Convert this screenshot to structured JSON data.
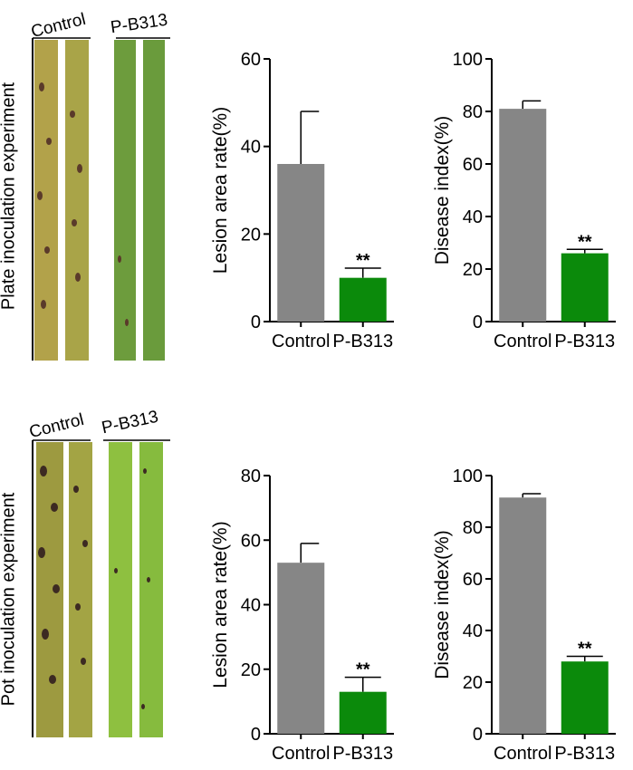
{
  "rows": [
    {
      "label": "Plate inoculation experiment",
      "photo": {
        "left_label": "Control",
        "right_label": "P-B313"
      },
      "charts": [
        {
          "type": "bar",
          "title": "",
          "xlabel": "",
          "ylabel": "Lesion area rate(%)",
          "categories": [
            "Control",
            "P-B313"
          ],
          "values": [
            36,
            10
          ],
          "errors": [
            12,
            2.2
          ],
          "significance": [
            "",
            "**"
          ],
          "ylim": [
            0,
            60
          ],
          "yticks": [
            0,
            20,
            40,
            60
          ],
          "colors": [
            "#868686",
            "#0b8a0b"
          ]
        },
        {
          "type": "bar",
          "title": "",
          "xlabel": "",
          "ylabel": "Disease index(%)",
          "categories": [
            "Control",
            "P-B313"
          ],
          "values": [
            81,
            26
          ],
          "errors": [
            3,
            1.5
          ],
          "significance": [
            "",
            "**"
          ],
          "ylim": [
            0,
            100
          ],
          "yticks": [
            0,
            20,
            40,
            60,
            80,
            100
          ],
          "colors": [
            "#868686",
            "#0b8a0b"
          ]
        }
      ]
    },
    {
      "label": "Pot inoculation experiment",
      "photo": {
        "left_label": "Control",
        "right_label": "P-B313"
      },
      "charts": [
        {
          "type": "bar",
          "title": "",
          "xlabel": "",
          "ylabel": "Lesion area rate(%)",
          "categories": [
            "Control",
            "P-B313"
          ],
          "values": [
            53,
            13
          ],
          "errors": [
            6,
            4.5
          ],
          "significance": [
            "",
            "**"
          ],
          "ylim": [
            0,
            80
          ],
          "yticks": [
            0,
            20,
            40,
            60,
            80
          ],
          "colors": [
            "#868686",
            "#0b8a0b"
          ]
        },
        {
          "type": "bar",
          "title": "",
          "xlabel": "",
          "ylabel": "Disease index(%)",
          "categories": [
            "Control",
            "P-B313"
          ],
          "values": [
            91.5,
            28
          ],
          "errors": [
            1.5,
            2
          ],
          "significance": [
            "",
            "**"
          ],
          "ylim": [
            0,
            100
          ],
          "yticks": [
            0,
            20,
            40,
            60,
            80,
            100
          ],
          "colors": [
            "#868686",
            "#0b8a0b"
          ]
        }
      ]
    }
  ]
}
